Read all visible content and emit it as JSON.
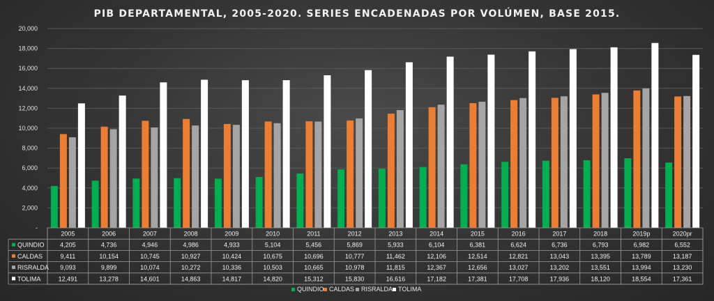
{
  "chart_data": {
    "type": "bar",
    "title": "PIB DEPARTAMENTAL,  2005-2020. SERIES ENCADENADAS POR VOLÚMEN,  BASE 2015.",
    "categories": [
      "2005",
      "2006",
      "2007",
      "2008",
      "2009",
      "2010",
      "2011",
      "2012",
      "2013",
      "2014",
      "2015",
      "2016",
      "2017",
      "2018",
      "2019p",
      "2020pr"
    ],
    "y_ticks": [
      "-",
      "2,000",
      "4,000",
      "6,000",
      "8,000",
      "10,000",
      "12,000",
      "14,000",
      "16,000",
      "18,000",
      "20,000"
    ],
    "ylim": [
      0,
      20000
    ],
    "grid": true,
    "legend_position": "bottom",
    "has_data_table": true,
    "series": [
      {
        "name": "QUINDIO",
        "color": "#00b050",
        "values": [
          4205,
          4736,
          4946,
          4986,
          4933,
          5104,
          5456,
          5869,
          5933,
          6104,
          6381,
          6624,
          6736,
          6793,
          6982,
          6552
        ],
        "labels": [
          "4,205",
          "4,736",
          "4,946",
          "4,986",
          "4,933",
          "5,104",
          "5,456",
          "5,869",
          "5,933",
          "6,104",
          "6,381",
          "6,624",
          "6,736",
          "6,793",
          "6,982",
          "6,552"
        ]
      },
      {
        "name": "CALDAS",
        "color": "#ed7d31",
        "values": [
          9411,
          10154,
          10745,
          10927,
          10424,
          10675,
          10696,
          10777,
          11462,
          12106,
          12514,
          12821,
          13043,
          13395,
          13789,
          13187
        ],
        "labels": [
          "9,411",
          "10,154",
          "10,745",
          "10,927",
          "10,424",
          "10,675",
          "10,696",
          "10,777",
          "11,462",
          "12,106",
          "12,514",
          "12,821",
          "13,043",
          "13,395",
          "13,789",
          "13,187"
        ]
      },
      {
        "name": "RISRALDA",
        "color": "#a5a5a5",
        "values": [
          9093,
          9899,
          10074,
          10272,
          10336,
          10503,
          10665,
          10978,
          11815,
          12367,
          12656,
          13027,
          13202,
          13551,
          13994,
          13230
        ],
        "labels": [
          "9,093",
          "9,899",
          "10,074",
          "10,272",
          "10,336",
          "10,503",
          "10,665",
          "10,978",
          "11,815",
          "12,367",
          "12,656",
          "13,027",
          "13,202",
          "13,551",
          "13,994",
          "13,230"
        ]
      },
      {
        "name": "TOLIMA",
        "color": "#ffffff",
        "values": [
          12491,
          13278,
          14601,
          14863,
          14817,
          14820,
          15312,
          15830,
          16616,
          17182,
          17381,
          17708,
          17936,
          18120,
          18554,
          17361
        ],
        "labels": [
          "12,491",
          "13,278",
          "14,601",
          "14,863",
          "14,817",
          "14,820",
          "15,312",
          "15,830",
          "16,616",
          "17,182",
          "17,381",
          "17,708",
          "17,936",
          "18,120",
          "18,554",
          "17,361"
        ]
      }
    ]
  }
}
